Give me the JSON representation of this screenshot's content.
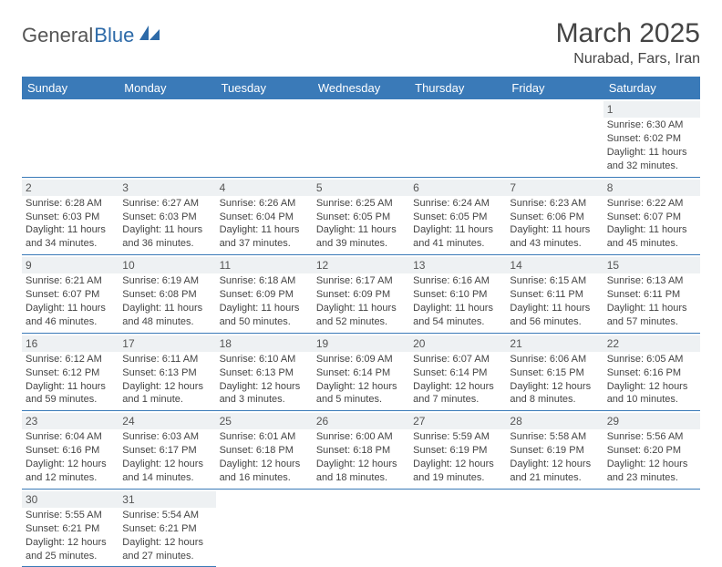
{
  "logo": {
    "general": "General",
    "blue": "Blue"
  },
  "title": "March 2025",
  "location": "Nurabad, Fars, Iran",
  "colors": {
    "header_bg": "#3a7ab8",
    "header_fg": "#ffffff",
    "daynum_bg": "#eef1f3",
    "border": "#3a7ab8"
  },
  "weekdays": [
    "Sunday",
    "Monday",
    "Tuesday",
    "Wednesday",
    "Thursday",
    "Friday",
    "Saturday"
  ],
  "weeks": [
    [
      {
        "empty": true
      },
      {
        "empty": true
      },
      {
        "empty": true
      },
      {
        "empty": true
      },
      {
        "empty": true
      },
      {
        "empty": true
      },
      {
        "day": "1",
        "sunrise": "Sunrise: 6:30 AM",
        "sunset": "Sunset: 6:02 PM",
        "daylight": "Daylight: 11 hours and 32 minutes."
      }
    ],
    [
      {
        "day": "2",
        "sunrise": "Sunrise: 6:28 AM",
        "sunset": "Sunset: 6:03 PM",
        "daylight": "Daylight: 11 hours and 34 minutes."
      },
      {
        "day": "3",
        "sunrise": "Sunrise: 6:27 AM",
        "sunset": "Sunset: 6:03 PM",
        "daylight": "Daylight: 11 hours and 36 minutes."
      },
      {
        "day": "4",
        "sunrise": "Sunrise: 6:26 AM",
        "sunset": "Sunset: 6:04 PM",
        "daylight": "Daylight: 11 hours and 37 minutes."
      },
      {
        "day": "5",
        "sunrise": "Sunrise: 6:25 AM",
        "sunset": "Sunset: 6:05 PM",
        "daylight": "Daylight: 11 hours and 39 minutes."
      },
      {
        "day": "6",
        "sunrise": "Sunrise: 6:24 AM",
        "sunset": "Sunset: 6:05 PM",
        "daylight": "Daylight: 11 hours and 41 minutes."
      },
      {
        "day": "7",
        "sunrise": "Sunrise: 6:23 AM",
        "sunset": "Sunset: 6:06 PM",
        "daylight": "Daylight: 11 hours and 43 minutes."
      },
      {
        "day": "8",
        "sunrise": "Sunrise: 6:22 AM",
        "sunset": "Sunset: 6:07 PM",
        "daylight": "Daylight: 11 hours and 45 minutes."
      }
    ],
    [
      {
        "day": "9",
        "sunrise": "Sunrise: 6:21 AM",
        "sunset": "Sunset: 6:07 PM",
        "daylight": "Daylight: 11 hours and 46 minutes."
      },
      {
        "day": "10",
        "sunrise": "Sunrise: 6:19 AM",
        "sunset": "Sunset: 6:08 PM",
        "daylight": "Daylight: 11 hours and 48 minutes."
      },
      {
        "day": "11",
        "sunrise": "Sunrise: 6:18 AM",
        "sunset": "Sunset: 6:09 PM",
        "daylight": "Daylight: 11 hours and 50 minutes."
      },
      {
        "day": "12",
        "sunrise": "Sunrise: 6:17 AM",
        "sunset": "Sunset: 6:09 PM",
        "daylight": "Daylight: 11 hours and 52 minutes."
      },
      {
        "day": "13",
        "sunrise": "Sunrise: 6:16 AM",
        "sunset": "Sunset: 6:10 PM",
        "daylight": "Daylight: 11 hours and 54 minutes."
      },
      {
        "day": "14",
        "sunrise": "Sunrise: 6:15 AM",
        "sunset": "Sunset: 6:11 PM",
        "daylight": "Daylight: 11 hours and 56 minutes."
      },
      {
        "day": "15",
        "sunrise": "Sunrise: 6:13 AM",
        "sunset": "Sunset: 6:11 PM",
        "daylight": "Daylight: 11 hours and 57 minutes."
      }
    ],
    [
      {
        "day": "16",
        "sunrise": "Sunrise: 6:12 AM",
        "sunset": "Sunset: 6:12 PM",
        "daylight": "Daylight: 11 hours and 59 minutes."
      },
      {
        "day": "17",
        "sunrise": "Sunrise: 6:11 AM",
        "sunset": "Sunset: 6:13 PM",
        "daylight": "Daylight: 12 hours and 1 minute."
      },
      {
        "day": "18",
        "sunrise": "Sunrise: 6:10 AM",
        "sunset": "Sunset: 6:13 PM",
        "daylight": "Daylight: 12 hours and 3 minutes."
      },
      {
        "day": "19",
        "sunrise": "Sunrise: 6:09 AM",
        "sunset": "Sunset: 6:14 PM",
        "daylight": "Daylight: 12 hours and 5 minutes."
      },
      {
        "day": "20",
        "sunrise": "Sunrise: 6:07 AM",
        "sunset": "Sunset: 6:14 PM",
        "daylight": "Daylight: 12 hours and 7 minutes."
      },
      {
        "day": "21",
        "sunrise": "Sunrise: 6:06 AM",
        "sunset": "Sunset: 6:15 PM",
        "daylight": "Daylight: 12 hours and 8 minutes."
      },
      {
        "day": "22",
        "sunrise": "Sunrise: 6:05 AM",
        "sunset": "Sunset: 6:16 PM",
        "daylight": "Daylight: 12 hours and 10 minutes."
      }
    ],
    [
      {
        "day": "23",
        "sunrise": "Sunrise: 6:04 AM",
        "sunset": "Sunset: 6:16 PM",
        "daylight": "Daylight: 12 hours and 12 minutes."
      },
      {
        "day": "24",
        "sunrise": "Sunrise: 6:03 AM",
        "sunset": "Sunset: 6:17 PM",
        "daylight": "Daylight: 12 hours and 14 minutes."
      },
      {
        "day": "25",
        "sunrise": "Sunrise: 6:01 AM",
        "sunset": "Sunset: 6:18 PM",
        "daylight": "Daylight: 12 hours and 16 minutes."
      },
      {
        "day": "26",
        "sunrise": "Sunrise: 6:00 AM",
        "sunset": "Sunset: 6:18 PM",
        "daylight": "Daylight: 12 hours and 18 minutes."
      },
      {
        "day": "27",
        "sunrise": "Sunrise: 5:59 AM",
        "sunset": "Sunset: 6:19 PM",
        "daylight": "Daylight: 12 hours and 19 minutes."
      },
      {
        "day": "28",
        "sunrise": "Sunrise: 5:58 AM",
        "sunset": "Sunset: 6:19 PM",
        "daylight": "Daylight: 12 hours and 21 minutes."
      },
      {
        "day": "29",
        "sunrise": "Sunrise: 5:56 AM",
        "sunset": "Sunset: 6:20 PM",
        "daylight": "Daylight: 12 hours and 23 minutes."
      }
    ],
    [
      {
        "day": "30",
        "sunrise": "Sunrise: 5:55 AM",
        "sunset": "Sunset: 6:21 PM",
        "daylight": "Daylight: 12 hours and 25 minutes."
      },
      {
        "day": "31",
        "sunrise": "Sunrise: 5:54 AM",
        "sunset": "Sunset: 6:21 PM",
        "daylight": "Daylight: 12 hours and 27 minutes."
      },
      {
        "empty": true
      },
      {
        "empty": true
      },
      {
        "empty": true
      },
      {
        "empty": true
      },
      {
        "empty": true
      }
    ]
  ]
}
